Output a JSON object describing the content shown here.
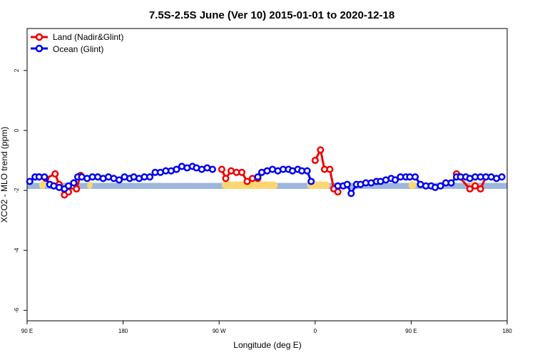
{
  "chart_data": {
    "type": "line",
    "title": "7.5S-2.5S June (Ver 10)   2015-01-01 to 2020-12-18",
    "xlabel": "Longitude (deg E)",
    "ylabel": "XCO2 - MLO trend (ppm)",
    "xlim": [
      90,
      450
    ],
    "ylim": [
      -6.35,
      3.4
    ],
    "x_ticks": [
      90,
      162,
      234,
      306,
      378,
      450
    ],
    "x_tick_labels": [
      "90 E",
      "180",
      "90 W",
      "0",
      "90 E",
      "180"
    ],
    "y_ticks": [
      2,
      0,
      -2,
      -4,
      -6
    ],
    "y_tick_labels": [
      "2",
      "0",
      "-2",
      "-4",
      "-6"
    ],
    "grid": false,
    "legend_position": "top-left",
    "colors": {
      "land": "#ee0000",
      "ocean": "#0000ee",
      "ocean_band": "#9db6dd",
      "land_band": "#fbd774"
    },
    "background_band": {
      "y_low": -1.95,
      "y_high": -1.75
    },
    "land_band_ranges": [
      [
        99,
        104
      ],
      [
        135,
        139
      ],
      [
        236,
        278
      ],
      [
        300,
        317
      ],
      [
        376,
        382
      ],
      [
        422,
        426
      ]
    ],
    "series": [
      {
        "name": "Land (Nadir&Glint)",
        "color": "#ee0000",
        "segments": [
          [
            [
              99,
              -1.55
            ],
            [
              104,
              -1.6
            ],
            [
              111,
              -1.45
            ],
            [
              114,
              -1.8
            ],
            [
              118,
              -2.15
            ],
            [
              121,
              -2.05
            ],
            [
              124,
              -1.85
            ],
            [
              127,
              -1.95
            ],
            [
              130,
              -1.5
            ]
          ],
          [
            [
              236,
              -1.3
            ],
            [
              239,
              -1.6
            ],
            [
              243,
              -1.35
            ],
            [
              247,
              -1.4
            ],
            [
              251,
              -1.4
            ],
            [
              255,
              -1.7
            ],
            [
              259,
              -1.6
            ],
            [
              263,
              -1.6
            ]
          ],
          [
            [
              306,
              -1.0
            ],
            [
              310,
              -0.65
            ],
            [
              313,
              -1.3
            ],
            [
              317,
              -1.3
            ],
            [
              320,
              -1.95
            ],
            [
              323,
              -2.05
            ]
          ],
          [
            [
              412,
              -1.45
            ],
            [
              422,
              -1.95
            ],
            [
              426,
              -1.85
            ],
            [
              430,
              -1.95
            ],
            [
              434,
              -1.55
            ]
          ]
        ]
      },
      {
        "name": "Ocean (Glint)",
        "color": "#0000ee",
        "segments": [
          [
            [
              92,
              -1.7
            ],
            [
              96,
              -1.55
            ],
            [
              99,
              -1.55
            ],
            [
              103,
              -1.55
            ],
            [
              107,
              -1.8
            ],
            [
              110,
              -1.85
            ],
            [
              114,
              -1.9
            ],
            [
              118,
              -1.95
            ],
            [
              121,
              -1.85
            ],
            [
              125,
              -1.75
            ],
            [
              128,
              -1.55
            ],
            [
              131,
              -1.55
            ],
            [
              135,
              -1.6
            ],
            [
              139,
              -1.55
            ],
            [
              143,
              -1.55
            ],
            [
              147,
              -1.6
            ],
            [
              151,
              -1.55
            ],
            [
              155,
              -1.6
            ],
            [
              159,
              -1.65
            ],
            [
              163,
              -1.55
            ],
            [
              167,
              -1.6
            ],
            [
              170,
              -1.55
            ],
            [
              174,
              -1.6
            ],
            [
              178,
              -1.55
            ],
            [
              182,
              -1.55
            ],
            [
              186,
              -1.4
            ],
            [
              190,
              -1.4
            ],
            [
              194,
              -1.35
            ],
            [
              198,
              -1.35
            ],
            [
              202,
              -1.3
            ],
            [
              206,
              -1.2
            ],
            [
              210,
              -1.25
            ],
            [
              214,
              -1.2
            ],
            [
              217,
              -1.25
            ],
            [
              221,
              -1.3
            ],
            [
              225,
              -1.25
            ],
            [
              229,
              -1.3
            ]
          ],
          [
            [
              263,
              -1.55
            ],
            [
              266,
              -1.4
            ],
            [
              270,
              -1.35
            ],
            [
              274,
              -1.3
            ],
            [
              278,
              -1.35
            ],
            [
              282,
              -1.3
            ],
            [
              286,
              -1.3
            ],
            [
              289,
              -1.35
            ],
            [
              293,
              -1.3
            ],
            [
              296,
              -1.35
            ],
            [
              300,
              -1.35
            ],
            [
              303,
              -1.7
            ]
          ],
          [
            [
              323,
              -1.85
            ],
            [
              327,
              -1.85
            ],
            [
              330,
              -1.8
            ],
            [
              333,
              -2.1
            ],
            [
              337,
              -1.8
            ],
            [
              340,
              -1.8
            ],
            [
              344,
              -1.75
            ],
            [
              348,
              -1.75
            ],
            [
              352,
              -1.7
            ],
            [
              355,
              -1.7
            ],
            [
              359,
              -1.65
            ],
            [
              363,
              -1.6
            ],
            [
              366,
              -1.65
            ],
            [
              370,
              -1.55
            ],
            [
              374,
              -1.55
            ],
            [
              377,
              -1.55
            ],
            [
              381,
              -1.55
            ],
            [
              385,
              -1.8
            ],
            [
              389,
              -1.85
            ],
            [
              393,
              -1.85
            ],
            [
              396,
              -1.9
            ],
            [
              400,
              -1.85
            ],
            [
              404,
              -1.75
            ],
            [
              408,
              -1.75
            ],
            [
              412,
              -1.55
            ],
            [
              415,
              -1.55
            ],
            [
              419,
              -1.55
            ],
            [
              422,
              -1.6
            ],
            [
              426,
              -1.55
            ],
            [
              430,
              -1.55
            ],
            [
              434,
              -1.55
            ],
            [
              438,
              -1.55
            ],
            [
              442,
              -1.6
            ],
            [
              446,
              -1.55
            ]
          ]
        ]
      }
    ]
  }
}
